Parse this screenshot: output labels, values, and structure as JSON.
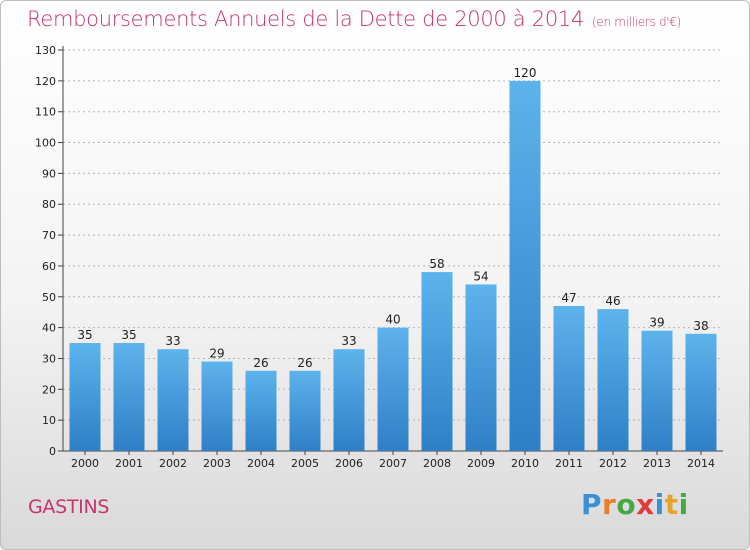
{
  "title": "Remboursements Annuels de la Dette de 2000 à 2014",
  "unit": "(en milliers d'€)",
  "town": "GASTINS",
  "logo": {
    "letters": [
      "P",
      "r",
      "o",
      "x",
      "i",
      "t",
      "i"
    ],
    "colors": [
      "#3b8fd6",
      "#e8802a",
      "#46a845",
      "#e13b3b",
      "#3b8fd6",
      "#e8a32a",
      "#46a845"
    ]
  },
  "chart_data": {
    "type": "bar",
    "title": "Remboursements Annuels de la Dette de 2000 à 2014",
    "categories": [
      "2000",
      "2001",
      "2002",
      "2003",
      "2004",
      "2005",
      "2006",
      "2007",
      "2008",
      "2009",
      "2010",
      "2011",
      "2012",
      "2013",
      "2014"
    ],
    "values": [
      35,
      35,
      33,
      29,
      26,
      26,
      33,
      40,
      58,
      54,
      120,
      47,
      46,
      39,
      38
    ],
    "ylim": [
      0,
      130
    ],
    "yticks": [
      0,
      10,
      20,
      30,
      40,
      50,
      60,
      70,
      80,
      90,
      100,
      110,
      120,
      130
    ],
    "grid": true,
    "bar_color": "#4aa3e3"
  }
}
